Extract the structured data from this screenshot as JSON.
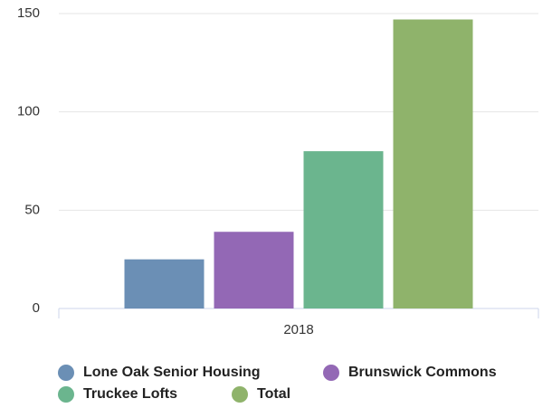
{
  "chart_data": {
    "type": "bar",
    "categories": [
      "2018"
    ],
    "series": [
      {
        "name": "Lone Oak Senior Housing",
        "color": "#6b8fb5",
        "values": [
          25
        ]
      },
      {
        "name": "Brunswick Commons",
        "color": "#9368b5",
        "values": [
          39
        ]
      },
      {
        "name": "Truckee Lofts",
        "color": "#6bb58e",
        "values": [
          80
        ]
      },
      {
        "name": "Total",
        "color": "#8fb36b",
        "values": [
          147
        ]
      }
    ],
    "ylim": [
      0,
      150
    ],
    "yticks": [
      0,
      50,
      100,
      150
    ],
    "grid": true
  }
}
